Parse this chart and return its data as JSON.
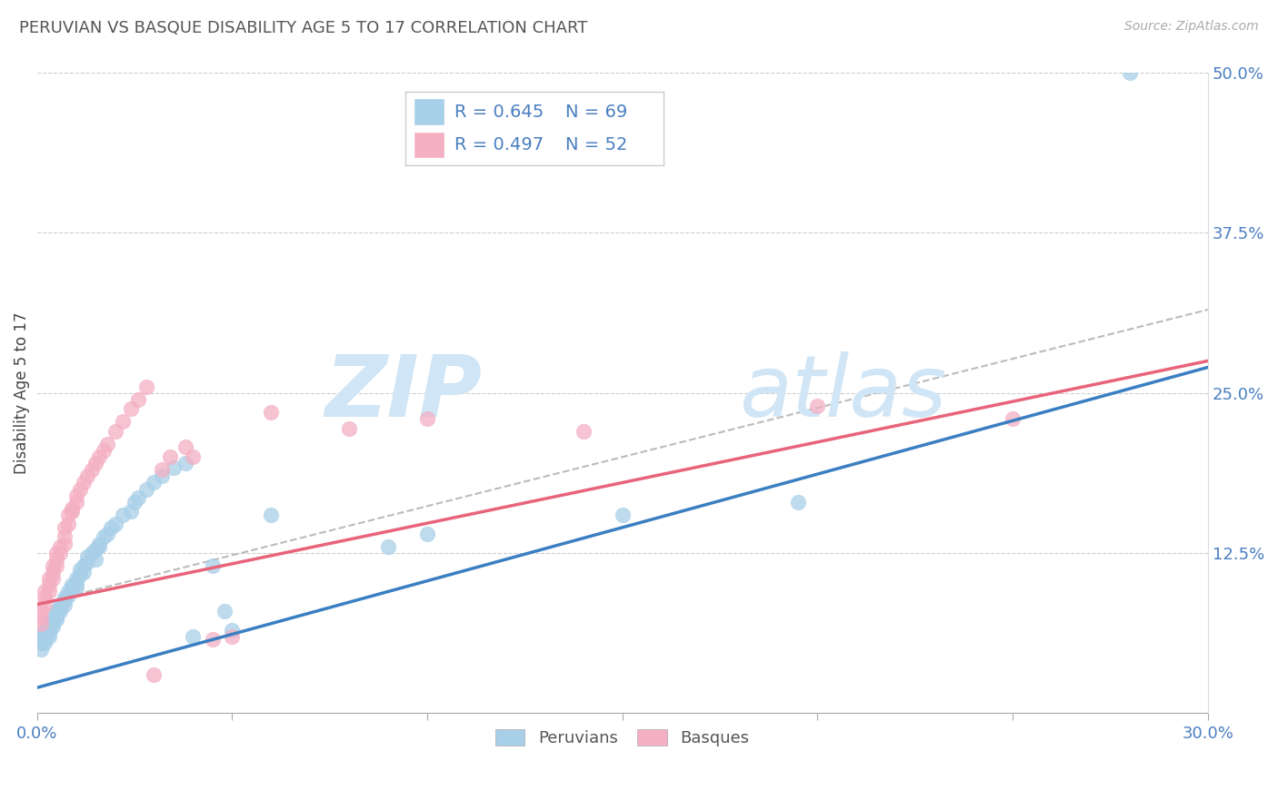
{
  "title": "PERUVIAN VS BASQUE DISABILITY AGE 5 TO 17 CORRELATION CHART",
  "source": "Source: ZipAtlas.com",
  "ylabel": "Disability Age 5 to 17",
  "xlim": [
    0.0,
    0.3
  ],
  "ylim": [
    0.0,
    0.5
  ],
  "blue_color": "#a8cfe8",
  "pink_color": "#f4afc3",
  "blue_line_color": "#3a7fc1",
  "pink_line_color": "#e8647a",
  "dashed_color": "#bbbbbb",
  "text_color_blue": "#4a7fc1",
  "axis_color": "#aaaaaa",
  "grid_color": "#cccccc",
  "title_color": "#555555",
  "R_blue": 0.645,
  "N_blue": 69,
  "R_pink": 0.497,
  "N_pink": 52,
  "watermark_zip": "ZIP",
  "watermark_atlas": "atlas",
  "legend_bottom_labels": [
    "Peruvians",
    "Basques"
  ],
  "blue_line_x0": 0.0,
  "blue_line_y0": 0.02,
  "blue_line_x1": 0.3,
  "blue_line_y1": 0.27,
  "pink_line_x0": 0.0,
  "pink_line_y0": 0.085,
  "pink_line_x1": 0.3,
  "pink_line_y1": 0.275,
  "dash_line_x0": 0.0,
  "dash_line_y0": 0.085,
  "dash_line_x1": 0.3,
  "dash_line_y1": 0.315,
  "blue_scatter_x": [
    0.001,
    0.001,
    0.001,
    0.001,
    0.002,
    0.002,
    0.002,
    0.002,
    0.002,
    0.003,
    0.003,
    0.003,
    0.003,
    0.003,
    0.004,
    0.004,
    0.004,
    0.004,
    0.005,
    0.005,
    0.005,
    0.005,
    0.006,
    0.006,
    0.006,
    0.007,
    0.007,
    0.007,
    0.008,
    0.008,
    0.009,
    0.009,
    0.01,
    0.01,
    0.01,
    0.011,
    0.011,
    0.012,
    0.012,
    0.013,
    0.013,
    0.014,
    0.015,
    0.015,
    0.016,
    0.016,
    0.017,
    0.018,
    0.019,
    0.02,
    0.022,
    0.024,
    0.025,
    0.026,
    0.028,
    0.03,
    0.032,
    0.035,
    0.038,
    0.04,
    0.045,
    0.048,
    0.05,
    0.06,
    0.09,
    0.1,
    0.15,
    0.195,
    0.28
  ],
  "blue_scatter_y": [
    0.05,
    0.055,
    0.058,
    0.06,
    0.055,
    0.06,
    0.065,
    0.058,
    0.062,
    0.06,
    0.065,
    0.068,
    0.07,
    0.063,
    0.068,
    0.072,
    0.075,
    0.07,
    0.075,
    0.078,
    0.08,
    0.073,
    0.082,
    0.085,
    0.08,
    0.088,
    0.09,
    0.085,
    0.092,
    0.095,
    0.098,
    0.1,
    0.102,
    0.105,
    0.098,
    0.108,
    0.112,
    0.115,
    0.11,
    0.118,
    0.122,
    0.125,
    0.128,
    0.12,
    0.132,
    0.13,
    0.138,
    0.14,
    0.145,
    0.148,
    0.155,
    0.158,
    0.165,
    0.168,
    0.175,
    0.18,
    0.185,
    0.192,
    0.195,
    0.06,
    0.115,
    0.08,
    0.065,
    0.155,
    0.13,
    0.14,
    0.155,
    0.165,
    0.5
  ],
  "pink_scatter_x": [
    0.001,
    0.001,
    0.001,
    0.002,
    0.002,
    0.002,
    0.003,
    0.003,
    0.003,
    0.004,
    0.004,
    0.004,
    0.005,
    0.005,
    0.005,
    0.006,
    0.006,
    0.007,
    0.007,
    0.007,
    0.008,
    0.008,
    0.009,
    0.009,
    0.01,
    0.01,
    0.011,
    0.012,
    0.013,
    0.014,
    0.015,
    0.016,
    0.017,
    0.018,
    0.02,
    0.022,
    0.024,
    0.026,
    0.028,
    0.03,
    0.032,
    0.034,
    0.038,
    0.04,
    0.045,
    0.05,
    0.06,
    0.08,
    0.1,
    0.14,
    0.2,
    0.25
  ],
  "pink_scatter_y": [
    0.07,
    0.075,
    0.08,
    0.085,
    0.09,
    0.095,
    0.095,
    0.1,
    0.105,
    0.105,
    0.11,
    0.115,
    0.115,
    0.12,
    0.125,
    0.125,
    0.13,
    0.132,
    0.138,
    0.145,
    0.148,
    0.155,
    0.158,
    0.16,
    0.165,
    0.17,
    0.175,
    0.18,
    0.185,
    0.19,
    0.195,
    0.2,
    0.205,
    0.21,
    0.22,
    0.228,
    0.238,
    0.245,
    0.255,
    0.03,
    0.19,
    0.2,
    0.208,
    0.2,
    0.058,
    0.06,
    0.235,
    0.222,
    0.23,
    0.22,
    0.24,
    0.23
  ]
}
